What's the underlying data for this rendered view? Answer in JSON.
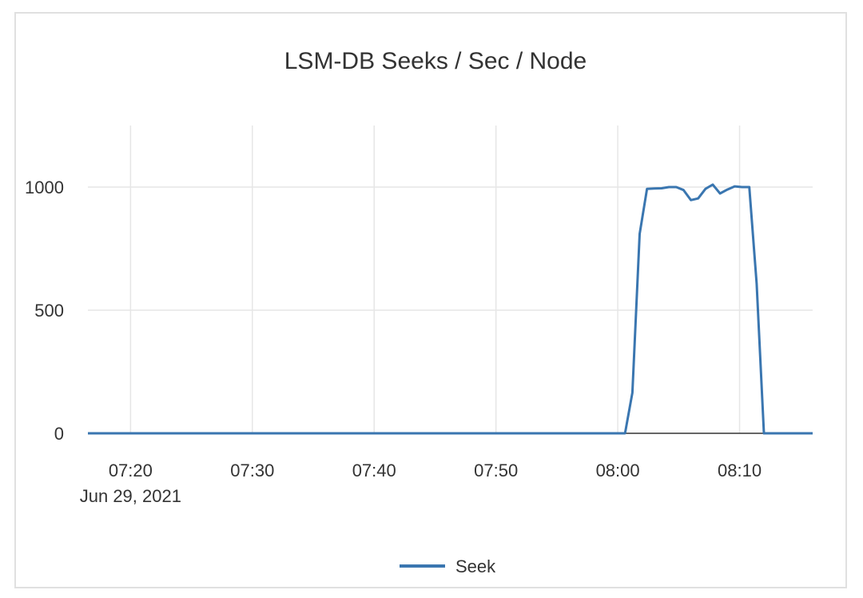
{
  "chart_data": {
    "type": "line",
    "title": "LSM-DB Seeks / Sec / Node",
    "xlabel": "",
    "ylabel": "",
    "x_ticks": [
      "07:20",
      "07:30",
      "07:40",
      "07:50",
      "08:00",
      "08:10"
    ],
    "x_tick_date": "Jun 29, 2021",
    "x_range": [
      "07:16:30",
      "08:16:00"
    ],
    "y_ticks": [
      0,
      500,
      1000
    ],
    "ylim": [
      0,
      1250
    ],
    "grid": true,
    "legend": "bottom",
    "series": [
      {
        "name": "Seek",
        "color": "#3a76b0",
        "x": [
          "07:16:30",
          "08:00:36",
          "08:01:12",
          "08:01:48",
          "08:02:24",
          "08:03:00",
          "08:03:36",
          "08:04:12",
          "08:04:48",
          "08:05:24",
          "08:06:00",
          "08:06:36",
          "08:07:12",
          "08:07:48",
          "08:08:24",
          "08:09:00",
          "08:09:36",
          "08:10:12",
          "08:10:48",
          "08:11:24",
          "08:12:00",
          "08:16:00"
        ],
        "y": [
          0,
          0,
          165,
          810,
          993,
          994,
          995,
          1000,
          1000,
          988,
          947,
          954,
          993,
          1010,
          974,
          990,
          1003,
          1000,
          1000,
          608,
          0,
          0
        ]
      }
    ]
  }
}
